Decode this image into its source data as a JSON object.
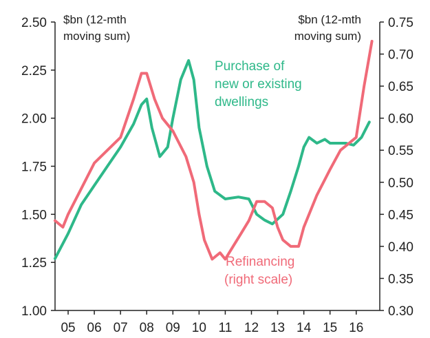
{
  "chart_data": {
    "type": "line",
    "title": "",
    "left_axis": {
      "unit_label": [
        "$bn (12-mth",
        "moving sum)"
      ],
      "ylim": [
        1.0,
        2.5
      ],
      "ticks": [
        "1.00",
        "1.25",
        "1.50",
        "1.75",
        "2.00",
        "2.25",
        "2.50"
      ],
      "tick_values": [
        1.0,
        1.25,
        1.5,
        1.75,
        2.0,
        2.25,
        2.5
      ]
    },
    "right_axis": {
      "unit_label": [
        "$bn (12-mth",
        "moving sum)"
      ],
      "ylim": [
        0.3,
        0.75
      ],
      "ticks": [
        "0.30",
        "0.35",
        "0.40",
        "0.45",
        "0.50",
        "0.55",
        "0.60",
        "0.65",
        "0.70",
        "0.75"
      ],
      "tick_values": [
        0.3,
        0.35,
        0.4,
        0.45,
        0.5,
        0.55,
        0.6,
        0.65,
        0.7,
        0.75
      ]
    },
    "x_axis": {
      "xlim": [
        2004.5,
        2016.9
      ],
      "labels": [
        "05",
        "06",
        "07",
        "08",
        "09",
        "10",
        "11",
        "12",
        "13",
        "14",
        "15",
        "16"
      ],
      "label_positions": [
        2005,
        2006,
        2007,
        2008,
        2009,
        2010,
        2011,
        2012,
        2013,
        2014,
        2015,
        2016
      ]
    },
    "grid": false,
    "series": [
      {
        "name": "Purchase of new or existing dwellings",
        "axis": "left",
        "color": "#2eb889",
        "label_lines": [
          "Purchase of",
          "new or existing",
          "dwellings"
        ],
        "x": [
          2004.5,
          2005.0,
          2005.5,
          2006.0,
          2006.5,
          2007.0,
          2007.5,
          2007.8,
          2008.0,
          2008.2,
          2008.5,
          2008.8,
          2009.0,
          2009.3,
          2009.6,
          2009.8,
          2010.0,
          2010.3,
          2010.6,
          2011.0,
          2011.5,
          2011.9,
          2012.2,
          2012.5,
          2012.8,
          2013.2,
          2013.5,
          2013.8,
          2014.0,
          2014.2,
          2014.5,
          2014.8,
          2015.0,
          2015.3,
          2015.6,
          2015.9,
          2016.2,
          2016.5
        ],
        "values": [
          1.27,
          1.4,
          1.55,
          1.65,
          1.75,
          1.85,
          1.97,
          2.07,
          2.1,
          1.95,
          1.8,
          1.85,
          2.0,
          2.2,
          2.3,
          2.2,
          1.95,
          1.75,
          1.62,
          1.58,
          1.59,
          1.58,
          1.5,
          1.47,
          1.45,
          1.5,
          1.62,
          1.75,
          1.85,
          1.9,
          1.87,
          1.89,
          1.87,
          1.87,
          1.87,
          1.86,
          1.9,
          1.98
        ]
      },
      {
        "name": "Refinancing",
        "axis": "right",
        "color": "#f06a78",
        "label_lines": [
          "Refinancing",
          "(right scale)"
        ],
        "x": [
          2004.5,
          2004.8,
          2005.0,
          2005.5,
          2006.0,
          2006.5,
          2007.0,
          2007.5,
          2007.8,
          2008.0,
          2008.3,
          2008.6,
          2009.0,
          2009.5,
          2009.8,
          2010.0,
          2010.2,
          2010.5,
          2010.8,
          2011.0,
          2011.3,
          2011.6,
          2011.9,
          2012.2,
          2012.5,
          2012.8,
          2013.0,
          2013.2,
          2013.5,
          2013.8,
          2014.0,
          2014.5,
          2015.0,
          2015.4,
          2015.7,
          2016.0,
          2016.3,
          2016.6
        ],
        "values": [
          0.44,
          0.43,
          0.45,
          0.49,
          0.53,
          0.55,
          0.57,
          0.63,
          0.67,
          0.67,
          0.63,
          0.6,
          0.58,
          0.54,
          0.5,
          0.45,
          0.41,
          0.38,
          0.39,
          0.38,
          0.4,
          0.42,
          0.44,
          0.47,
          0.47,
          0.46,
          0.43,
          0.41,
          0.4,
          0.4,
          0.43,
          0.48,
          0.52,
          0.55,
          0.56,
          0.57,
          0.65,
          0.72
        ]
      }
    ]
  }
}
